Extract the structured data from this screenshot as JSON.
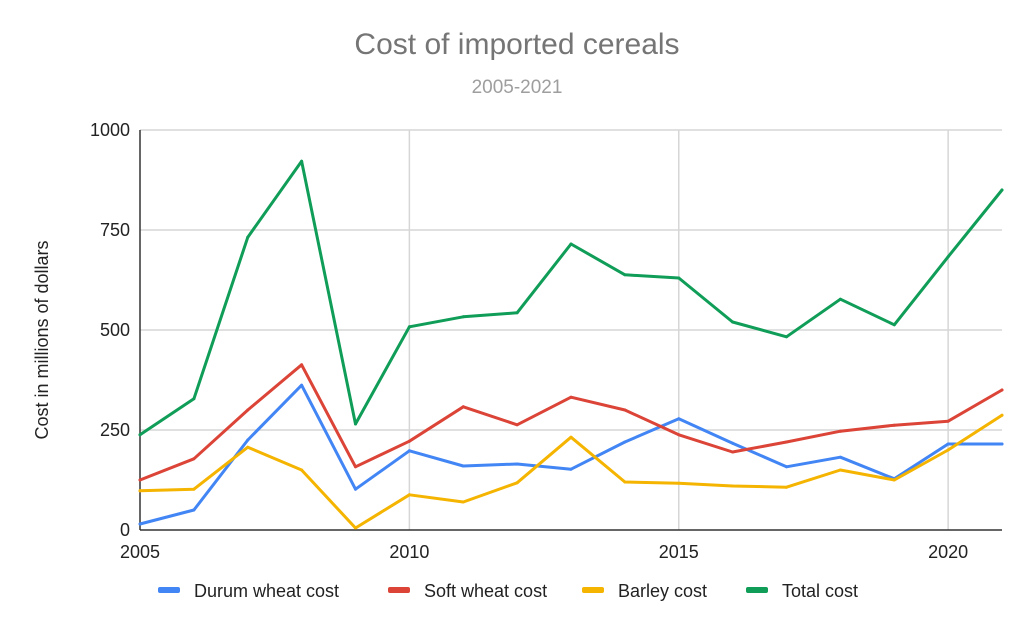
{
  "chart_data": {
    "type": "line",
    "title": "Cost of imported cereals",
    "subtitle": "2005-2021",
    "ylabel": "Cost in millions of dollars",
    "xlabel": "",
    "xlim": [
      2005,
      2021
    ],
    "ylim": [
      0,
      1000
    ],
    "x_ticks": [
      2005,
      2010,
      2015,
      2020
    ],
    "y_ticks": [
      0,
      250,
      500,
      750,
      1000
    ],
    "grid": true,
    "legend_position": "bottom",
    "x": [
      2005,
      2006,
      2007,
      2008,
      2009,
      2010,
      2011,
      2012,
      2013,
      2014,
      2015,
      2016,
      2017,
      2018,
      2019,
      2020,
      2021
    ],
    "series": [
      {
        "name": "Durum wheat cost",
        "color": "#4285F4",
        "values": [
          15,
          50,
          225,
          362,
          102,
          198,
          160,
          165,
          152,
          220,
          278,
          217,
          158,
          182,
          128,
          215,
          215
        ]
      },
      {
        "name": "Soft wheat cost",
        "color": "#DB4437",
        "values": [
          125,
          178,
          300,
          413,
          158,
          222,
          308,
          263,
          332,
          300,
          238,
          195,
          220,
          247,
          262,
          272,
          350
        ]
      },
      {
        "name": "Barley cost",
        "color": "#F4B400",
        "values": [
          98,
          102,
          207,
          150,
          5,
          88,
          70,
          118,
          232,
          120,
          117,
          110,
          107,
          150,
          125,
          200,
          287
        ]
      },
      {
        "name": "Total cost",
        "color": "#0F9D58",
        "values": [
          238,
          328,
          732,
          922,
          265,
          508,
          533,
          543,
          715,
          638,
          630,
          520,
          483,
          577,
          513,
          683,
          850
        ]
      }
    ]
  }
}
